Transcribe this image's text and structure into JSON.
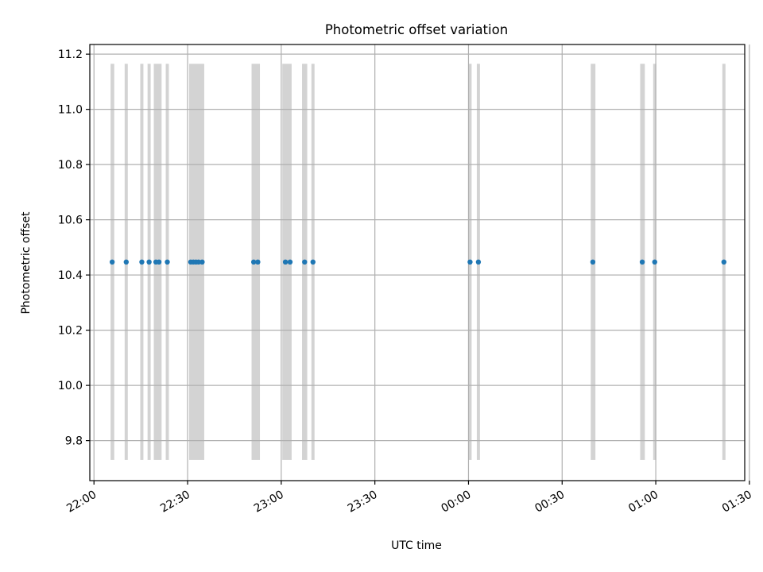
{
  "chart_data": {
    "type": "scatter",
    "title": "Photometric offset variation",
    "xlabel": "UTC time",
    "ylabel": "Photometric offset",
    "x_axis_type": "time",
    "xlim": [
      "2023-01-01T21:58:40",
      "2023-01-02T01:28:30"
    ],
    "ylim": [
      9.655,
      11.235
    ],
    "x_ticks": [
      {
        "t": "2023-01-01T22:00:00",
        "label": "22:00"
      },
      {
        "t": "2023-01-01T22:30:00",
        "label": "22:30"
      },
      {
        "t": "2023-01-01T23:00:00",
        "label": "23:00"
      },
      {
        "t": "2023-01-01T23:30:00",
        "label": "23:30"
      },
      {
        "t": "2023-01-02T00:00:00",
        "label": "00:00"
      },
      {
        "t": "2023-01-02T00:30:00",
        "label": "00:30"
      },
      {
        "t": "2023-01-02T01:00:00",
        "label": "01:00"
      },
      {
        "t": "2023-01-02T01:30:00",
        "label": "01:30"
      }
    ],
    "y_ticks": [
      {
        "v": 9.8,
        "label": "9.8"
      },
      {
        "v": 10.0,
        "label": "10.0"
      },
      {
        "v": 10.2,
        "label": "10.2"
      },
      {
        "v": 10.4,
        "label": "10.4"
      },
      {
        "v": 10.6,
        "label": "10.6"
      },
      {
        "v": 10.8,
        "label": "10.8"
      },
      {
        "v": 11.0,
        "label": "11.0"
      },
      {
        "v": 11.2,
        "label": "11.2"
      }
    ],
    "grid": true,
    "colors": {
      "points": "#1f77b4",
      "bands": "#d3d3d3",
      "grid": "#b0b0b0"
    },
    "bands": {
      "ymin": 9.73,
      "ymax": 11.165,
      "intervals": [
        [
          "2023-01-01T22:05:20",
          "2023-01-01T22:06:30"
        ],
        [
          "2023-01-01T22:09:50",
          "2023-01-01T22:10:50"
        ],
        [
          "2023-01-01T22:14:50",
          "2023-01-01T22:15:50"
        ],
        [
          "2023-01-01T22:17:10",
          "2023-01-01T22:18:10"
        ],
        [
          "2023-01-01T22:19:10",
          "2023-01-01T22:21:40"
        ],
        [
          "2023-01-01T22:23:00",
          "2023-01-01T22:24:00"
        ],
        [
          "2023-01-01T22:30:30",
          "2023-01-01T22:35:20"
        ],
        [
          "2023-01-01T22:50:30",
          "2023-01-01T22:53:10"
        ],
        [
          "2023-01-01T23:00:20",
          "2023-01-01T23:03:20"
        ],
        [
          "2023-01-01T23:06:40",
          "2023-01-01T23:08:20"
        ],
        [
          "2023-01-01T23:09:40",
          "2023-01-01T23:10:40"
        ],
        [
          "2023-01-02T00:00:00",
          "2023-01-02T00:01:00"
        ],
        [
          "2023-01-02T00:02:40",
          "2023-01-02T00:03:40"
        ],
        [
          "2023-01-02T00:39:10",
          "2023-01-02T00:40:40"
        ],
        [
          "2023-01-02T00:55:00",
          "2023-01-02T00:56:30"
        ],
        [
          "2023-01-02T00:59:10",
          "2023-01-02T01:00:10"
        ],
        [
          "2023-01-02T01:21:20",
          "2023-01-02T01:22:20"
        ]
      ]
    },
    "series": [
      {
        "x": [
          "2023-01-01T22:05:50",
          "2023-01-01T22:10:20",
          "2023-01-01T22:15:20",
          "2023-01-01T22:17:40",
          "2023-01-01T22:19:50",
          "2023-01-01T22:20:50",
          "2023-01-01T22:23:30",
          "2023-01-01T22:31:00",
          "2023-01-01T22:31:50",
          "2023-01-01T22:32:40",
          "2023-01-01T22:33:30",
          "2023-01-01T22:34:40",
          "2023-01-01T22:51:10",
          "2023-01-01T22:52:30",
          "2023-01-01T23:01:20",
          "2023-01-01T23:02:50",
          "2023-01-01T23:07:30",
          "2023-01-01T23:10:10",
          "2023-01-02T00:00:30",
          "2023-01-02T00:03:10",
          "2023-01-02T00:39:50",
          "2023-01-02T00:55:40",
          "2023-01-02T00:59:40",
          "2023-01-02T01:21:50"
        ],
        "y": [
          10.447,
          10.447,
          10.447,
          10.447,
          10.447,
          10.447,
          10.447,
          10.447,
          10.447,
          10.447,
          10.447,
          10.447,
          10.447,
          10.447,
          10.447,
          10.447,
          10.447,
          10.447,
          10.447,
          10.447,
          10.447,
          10.447,
          10.447,
          10.447
        ]
      }
    ]
  }
}
